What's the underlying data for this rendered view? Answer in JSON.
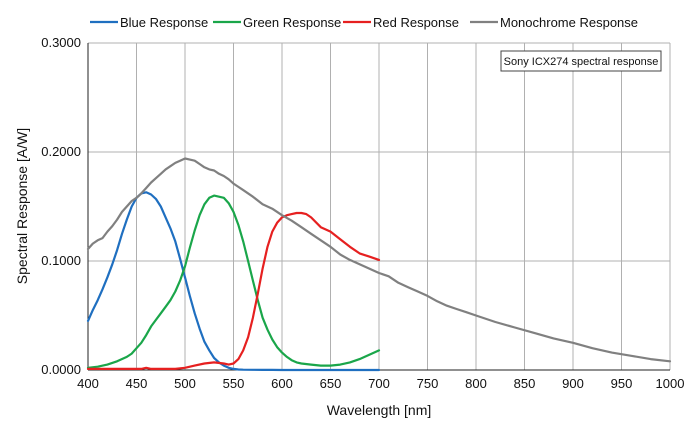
{
  "chart_data": {
    "type": "line",
    "title": "",
    "annotation": "Sony ICX274 spectral response",
    "xlabel": "Wavelength [nm]",
    "ylabel": "Spectral Response [A/W]",
    "xlim": [
      400,
      1000
    ],
    "ylim": [
      0,
      0.3
    ],
    "x_ticks": [
      "400",
      "450",
      "500",
      "550",
      "600",
      "650",
      "700",
      "750",
      "800",
      "850",
      "900",
      "950",
      "1000"
    ],
    "y_ticks": [
      "0.0000",
      "0.1000",
      "0.2000",
      "0.3000"
    ],
    "grid": true,
    "legend_position": "top",
    "series": [
      {
        "name": "Blue Response",
        "color": "#1f6fc0",
        "x": [
          400,
          405,
          410,
          415,
          420,
          425,
          430,
          435,
          440,
          445,
          450,
          455,
          460,
          465,
          470,
          475,
          480,
          485,
          490,
          495,
          500,
          505,
          510,
          515,
          520,
          525,
          530,
          535,
          540,
          545,
          550,
          555,
          560,
          570,
          580,
          590,
          600,
          650,
          700
        ],
        "y": [
          0.045,
          0.055,
          0.064,
          0.074,
          0.085,
          0.097,
          0.11,
          0.125,
          0.138,
          0.15,
          0.158,
          0.162,
          0.163,
          0.161,
          0.157,
          0.15,
          0.14,
          0.13,
          0.118,
          0.102,
          0.085,
          0.068,
          0.052,
          0.038,
          0.026,
          0.018,
          0.011,
          0.007,
          0.004,
          0.002,
          0.001,
          0.0005,
          0.0003,
          0.0002,
          0.0001,
          0.0001,
          0,
          0,
          0
        ]
      },
      {
        "name": "Green Response",
        "color": "#1aa64a",
        "x": [
          400,
          410,
          420,
          430,
          440,
          445,
          450,
          455,
          460,
          465,
          470,
          475,
          480,
          485,
          490,
          495,
          500,
          505,
          510,
          515,
          520,
          525,
          530,
          535,
          540,
          545,
          550,
          555,
          560,
          565,
          570,
          575,
          580,
          585,
          590,
          595,
          600,
          605,
          610,
          615,
          620,
          630,
          640,
          650,
          660,
          670,
          680,
          690,
          700
        ],
        "y": [
          0.002,
          0.003,
          0.005,
          0.008,
          0.012,
          0.015,
          0.02,
          0.025,
          0.032,
          0.04,
          0.046,
          0.052,
          0.058,
          0.064,
          0.072,
          0.082,
          0.095,
          0.112,
          0.128,
          0.142,
          0.152,
          0.158,
          0.16,
          0.159,
          0.158,
          0.153,
          0.145,
          0.133,
          0.118,
          0.1,
          0.082,
          0.064,
          0.048,
          0.037,
          0.028,
          0.021,
          0.016,
          0.012,
          0.009,
          0.007,
          0.006,
          0.005,
          0.004,
          0.004,
          0.005,
          0.007,
          0.01,
          0.014,
          0.018
        ]
      },
      {
        "name": "Red Response",
        "color": "#e62020",
        "x": [
          400,
          420,
          440,
          450,
          455,
          460,
          465,
          470,
          480,
          490,
          500,
          510,
          520,
          530,
          540,
          545,
          550,
          555,
          560,
          565,
          570,
          575,
          580,
          585,
          590,
          595,
          600,
          605,
          610,
          615,
          620,
          625,
          630,
          640,
          650,
          660,
          670,
          680,
          690,
          700
        ],
        "y": [
          0.001,
          0.001,
          0.001,
          0.001,
          0.001,
          0.002,
          0.001,
          0.001,
          0.001,
          0.001,
          0.002,
          0.004,
          0.006,
          0.007,
          0.006,
          0.005,
          0.006,
          0.01,
          0.018,
          0.03,
          0.048,
          0.07,
          0.093,
          0.113,
          0.127,
          0.135,
          0.14,
          0.142,
          0.143,
          0.144,
          0.144,
          0.143,
          0.14,
          0.131,
          0.127,
          0.12,
          0.113,
          0.107,
          0.104,
          0.101
        ]
      },
      {
        "name": "Monochrome Response",
        "color": "#808080",
        "x": [
          400,
          405,
          410,
          415,
          420,
          425,
          430,
          435,
          440,
          445,
          450,
          455,
          460,
          465,
          470,
          475,
          480,
          485,
          490,
          495,
          500,
          505,
          510,
          515,
          520,
          525,
          530,
          535,
          540,
          545,
          550,
          555,
          560,
          570,
          580,
          590,
          600,
          610,
          620,
          630,
          640,
          650,
          660,
          670,
          680,
          690,
          700,
          710,
          720,
          730,
          740,
          750,
          760,
          770,
          780,
          790,
          800,
          820,
          840,
          860,
          880,
          900,
          920,
          940,
          960,
          980,
          1000
        ],
        "y": [
          0.111,
          0.116,
          0.119,
          0.121,
          0.127,
          0.132,
          0.138,
          0.145,
          0.15,
          0.155,
          0.158,
          0.162,
          0.167,
          0.172,
          0.176,
          0.18,
          0.184,
          0.187,
          0.19,
          0.192,
          0.194,
          0.193,
          0.192,
          0.189,
          0.186,
          0.184,
          0.183,
          0.18,
          0.178,
          0.175,
          0.171,
          0.168,
          0.165,
          0.159,
          0.152,
          0.148,
          0.142,
          0.137,
          0.131,
          0.125,
          0.119,
          0.113,
          0.106,
          0.101,
          0.097,
          0.093,
          0.089,
          0.086,
          0.08,
          0.076,
          0.072,
          0.068,
          0.063,
          0.059,
          0.056,
          0.053,
          0.05,
          0.044,
          0.039,
          0.034,
          0.029,
          0.025,
          0.02,
          0.016,
          0.013,
          0.01,
          0.008
        ]
      }
    ]
  }
}
